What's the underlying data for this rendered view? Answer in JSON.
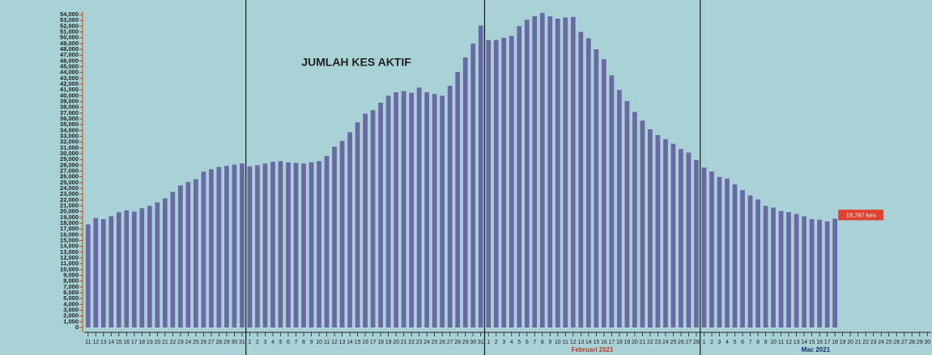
{
  "chart_data": {
    "type": "bar",
    "title": "JUMLAH KES AKTIF",
    "color": "#6b68a6",
    "categories": [
      "11",
      "12",
      "13",
      "14",
      "15",
      "16",
      "17",
      "18",
      "19",
      "20",
      "21",
      "22",
      "23",
      "24",
      "25",
      "26",
      "27",
      "28",
      "29",
      "30",
      "31",
      "1",
      "2",
      "3",
      "4",
      "5",
      "6",
      "7",
      "8",
      "9",
      "10",
      "11",
      "12",
      "13",
      "14",
      "15",
      "16",
      "17",
      "18",
      "19",
      "20",
      "21",
      "22",
      "23",
      "24",
      "25",
      "26",
      "27",
      "28",
      "29",
      "30",
      "31",
      "1",
      "2",
      "3",
      "4",
      "5",
      "6",
      "7",
      "8",
      "9",
      "10",
      "11",
      "12",
      "13",
      "14",
      "15",
      "16",
      "17",
      "18",
      "19",
      "20",
      "21",
      "22",
      "23",
      "24",
      "25",
      "26",
      "27",
      "28",
      "1",
      "2",
      "3",
      "4",
      "5",
      "6",
      "7",
      "8",
      "9",
      "10",
      "11",
      "12",
      "13",
      "14",
      "15",
      "16",
      "17",
      "18",
      "19",
      "20",
      "21",
      "22",
      "23",
      "24",
      "25",
      "26",
      "27",
      "28",
      "29",
      "30"
    ],
    "values": [
      17800,
      18900,
      18700,
      19200,
      19900,
      20200,
      20000,
      20600,
      21000,
      21600,
      22300,
      23400,
      24500,
      25100,
      25600,
      26900,
      27300,
      27700,
      27900,
      28100,
      28300,
      27800,
      28000,
      28300,
      28600,
      28700,
      28500,
      28400,
      28300,
      28500,
      28700,
      29600,
      31200,
      32200,
      33700,
      35400,
      36900,
      37500,
      38800,
      40000,
      40600,
      40800,
      40500,
      41400,
      40600,
      40300,
      40000,
      41700,
      44100,
      46600,
      49000,
      52100,
      49600,
      49600,
      50000,
      50300,
      52000,
      53100,
      53700,
      54300,
      53700,
      53300,
      53500,
      53600,
      51000,
      49900,
      48000,
      46300,
      43500,
      41000,
      39100,
      37200,
      35700,
      34200,
      33200,
      32500,
      31700,
      30800,
      30200,
      28900,
      27600,
      26900,
      26000,
      25700,
      24700,
      23700,
      22800,
      22100,
      21000,
      20700,
      20100,
      19900,
      19600,
      19200,
      18700,
      18600,
      18300,
      18787,
      null,
      null,
      null,
      null,
      null,
      null,
      null,
      null,
      null,
      null,
      null,
      null
    ],
    "value_labels": [
      null,
      null,
      null,
      null,
      null,
      null,
      null,
      null,
      null,
      null,
      null,
      null,
      null,
      null,
      null,
      null,
      null,
      null,
      null,
      null,
      null,
      null,
      null,
      null,
      null,
      null,
      null,
      null,
      null,
      null,
      null,
      null,
      null,
      null,
      null,
      null,
      null,
      null,
      null,
      null,
      null,
      null,
      null,
      null,
      null,
      null,
      null,
      null,
      null,
      null,
      null,
      null,
      null,
      null,
      null,
      null,
      null,
      null,
      null,
      null,
      null,
      null,
      null,
      null,
      null,
      null,
      null,
      null,
      null,
      null,
      null,
      null,
      null,
      null,
      null,
      null,
      null,
      null,
      null,
      null,
      null,
      null,
      null,
      null,
      null,
      null,
      null,
      null,
      null,
      null,
      null,
      null,
      null,
      null,
      null,
      null,
      null,
      "18,787 kes",
      null,
      null,
      null,
      null,
      null,
      null,
      null,
      null,
      null,
      null,
      null,
      null
    ],
    "month_labels": [
      null,
      null,
      "Februari 2021",
      "Mac 2021"
    ],
    "ylim": [
      0,
      54000
    ],
    "yticks": [
      0,
      {
        "value": 1000,
        "label": "1,000"
      },
      {
        "value": 2000,
        "label": "2,000"
      },
      {
        "value": 3000,
        "label": "3,000"
      },
      {
        "value": 4000,
        "label": "4,000"
      },
      {
        "value": 5000,
        "label": "5,000"
      },
      {
        "value": 6000,
        "label": "6,000"
      },
      {
        "value": 7000,
        "label": "7,000"
      },
      {
        "value": 8000,
        "label": "8,000"
      },
      {
        "value": 9000,
        "label": "9,000"
      },
      {
        "value": 10000,
        "label": "10,000"
      },
      {
        "value": 11000,
        "label": "11,000"
      },
      {
        "value": 12000,
        "label": "12,000"
      },
      {
        "value": 13000,
        "label": "13,000"
      },
      {
        "value": 14000,
        "label": "14,000"
      },
      {
        "value": 15000,
        "label": "15,000"
      },
      {
        "value": 16000,
        "label": "16,000"
      },
      {
        "value": 17000,
        "label": "17,000"
      },
      {
        "value": 18000,
        "label": "18,000"
      },
      {
        "value": 19000,
        "label": "19,000"
      },
      {
        "value": 20000,
        "label": "20,000"
      },
      {
        "value": 21000,
        "label": "21,000"
      },
      {
        "value": 22000,
        "label": "22,000"
      },
      {
        "value": 23000,
        "label": "23,000"
      },
      {
        "value": 24000,
        "label": "24,000"
      },
      {
        "value": 25000,
        "label": "25,000"
      },
      {
        "value": 26000,
        "label": "26,000"
      },
      {
        "value": 27000,
        "label": "27,000"
      },
      {
        "value": 28000,
        "label": "28,000"
      },
      {
        "value": 29000,
        "label": "29,000"
      },
      {
        "value": 30000,
        "label": "30,000"
      },
      {
        "value": 31000,
        "label": "31,000"
      },
      {
        "value": 32000,
        "label": "32,000"
      },
      {
        "value": 33000,
        "label": "33,000"
      },
      {
        "value": 34000,
        "label": "34,000"
      },
      {
        "value": 35000,
        "label": "35,000"
      },
      {
        "value": 36000,
        "label": "36,000"
      },
      {
        "value": 37000,
        "label": "37,000"
      },
      {
        "value": 38000,
        "label": "38,000"
      },
      {
        "value": 39000,
        "label": "39,000"
      },
      {
        "value": 40000,
        "label": "40,000"
      },
      {
        "value": 41000,
        "label": "41,000"
      },
      {
        "value": 42000,
        "label": "42,000"
      },
      {
        "value": 43000,
        "label": "43,000"
      },
      {
        "value": 44000,
        "label": "44,000"
      },
      {
        "value": 45000,
        "label": "45,000"
      },
      {
        "value": 46000,
        "label": "46,000"
      },
      {
        "value": 47000,
        "label": "47,000"
      },
      {
        "value": 48000,
        "label": "48,000"
      },
      {
        "value": 49000,
        "label": "49,000"
      },
      {
        "value": 50000,
        "label": "50,000"
      },
      {
        "value": 51000,
        "label": "51,000"
      },
      {
        "value": 52000,
        "label": "52,000"
      },
      {
        "value": 53000,
        "label": "53,000"
      },
      {
        "value": 54000,
        "label": "54,000"
      }
    ]
  }
}
